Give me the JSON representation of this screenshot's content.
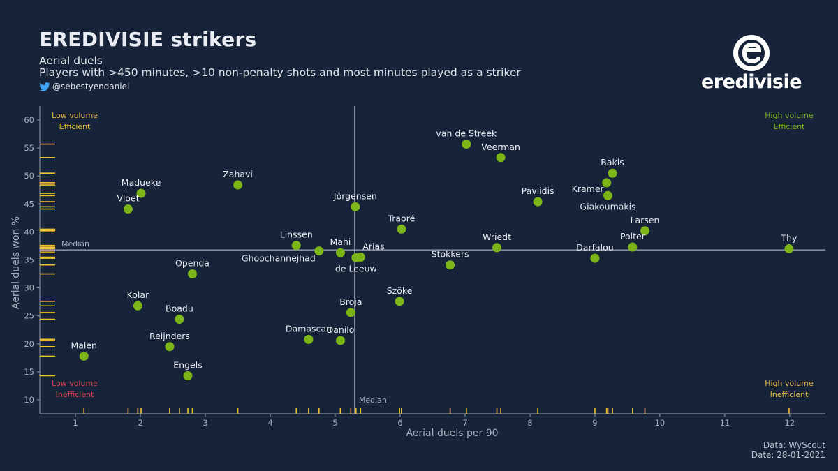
{
  "header": {
    "title": "EREDIVISIE strikers",
    "subtitle1": "Aerial duels",
    "subtitle2": "Players with >450 minutes, >10 non-penalty shots and most minutes played as a striker",
    "handle": "@sebestyendaniel"
  },
  "logo": {
    "text": "eredivisie"
  },
  "footer": {
    "source": "Data: WyScout",
    "date": "Date: 28-01-2021"
  },
  "chart_data": {
    "type": "scatter",
    "xlabel": "Aerial duels per 90",
    "ylabel": "Aerial duels won %",
    "xlim": [
      0.45,
      12.55
    ],
    "ylim": [
      7.5,
      62.5
    ],
    "x_ticks": [
      1,
      2,
      3,
      4,
      5,
      6,
      7,
      8,
      9,
      10,
      11,
      12
    ],
    "y_ticks": [
      10,
      15,
      20,
      25,
      30,
      35,
      40,
      45,
      50,
      55,
      60
    ],
    "median": {
      "x": 5.3,
      "y": 36.8,
      "label": "Median"
    },
    "grid": false,
    "rug": true,
    "colors": {
      "point": "#7cb518",
      "rug": "#f2c12e",
      "median": "#c7ccd6",
      "low_efficient": "#e0b83a",
      "high_efficient": "#7cb518",
      "low_inefficient": "#e0404f",
      "high_inefficient": "#e0b83a"
    },
    "quadrants": {
      "top_left": [
        "Low volume",
        "Efficient"
      ],
      "top_right": [
        "High volume",
        "Efficient"
      ],
      "bottom_left": [
        "Low volume",
        "Inefficient"
      ],
      "bottom_right": [
        "High volume",
        "Inefficient"
      ]
    },
    "points": [
      {
        "name": "van de Streek",
        "x": 7.02,
        "y": 55.7
      },
      {
        "name": "Veerman",
        "x": 7.55,
        "y": 53.3
      },
      {
        "name": "Bakis",
        "x": 9.27,
        "y": 50.5
      },
      {
        "name": "Kramer",
        "x": 9.18,
        "y": 48.8
      },
      {
        "name": "Giakoumakis",
        "x": 9.2,
        "y": 46.5
      },
      {
        "name": "Pavlidis",
        "x": 8.12,
        "y": 45.4
      },
      {
        "name": "Larsen",
        "x": 9.77,
        "y": 40.2
      },
      {
        "name": "Polter",
        "x": 9.58,
        "y": 37.3
      },
      {
        "name": "Thy",
        "x": 11.99,
        "y": 37.0
      },
      {
        "name": "Darfalou",
        "x": 9.0,
        "y": 35.3
      },
      {
        "name": "Wriedt",
        "x": 7.49,
        "y": 37.2
      },
      {
        "name": "Stokkers",
        "x": 6.77,
        "y": 34.1
      },
      {
        "name": "Traoré",
        "x": 6.02,
        "y": 40.5
      },
      {
        "name": "Jörgensen",
        "x": 5.31,
        "y": 44.5
      },
      {
        "name": "Zahavi",
        "x": 3.5,
        "y": 48.4
      },
      {
        "name": "Madueke",
        "x": 2.01,
        "y": 46.9
      },
      {
        "name": "Vloet",
        "x": 1.81,
        "y": 44.1
      },
      {
        "name": "Linssen",
        "x": 4.4,
        "y": 37.6
      },
      {
        "name": "Ghoochannejhad",
        "x": 4.75,
        "y": 36.6
      },
      {
        "name": "Mahi",
        "x": 5.08,
        "y": 36.3
      },
      {
        "name": "Arias",
        "x": 5.39,
        "y": 35.5
      },
      {
        "name": "de Leeuw",
        "x": 5.32,
        "y": 35.4
      },
      {
        "name": "Openda",
        "x": 2.8,
        "y": 32.5
      },
      {
        "name": "Szöke",
        "x": 5.99,
        "y": 27.6
      },
      {
        "name": "Broja",
        "x": 5.24,
        "y": 25.6
      },
      {
        "name": "Kolar",
        "x": 1.96,
        "y": 26.8
      },
      {
        "name": "Boadu",
        "x": 2.6,
        "y": 24.4
      },
      {
        "name": "Damascan",
        "x": 4.59,
        "y": 20.8
      },
      {
        "name": "Danilo",
        "x": 5.08,
        "y": 20.6
      },
      {
        "name": "Reijnders",
        "x": 2.45,
        "y": 19.5
      },
      {
        "name": "Malen",
        "x": 1.13,
        "y": 17.8
      },
      {
        "name": "Engels",
        "x": 2.73,
        "y": 14.3
      }
    ]
  }
}
